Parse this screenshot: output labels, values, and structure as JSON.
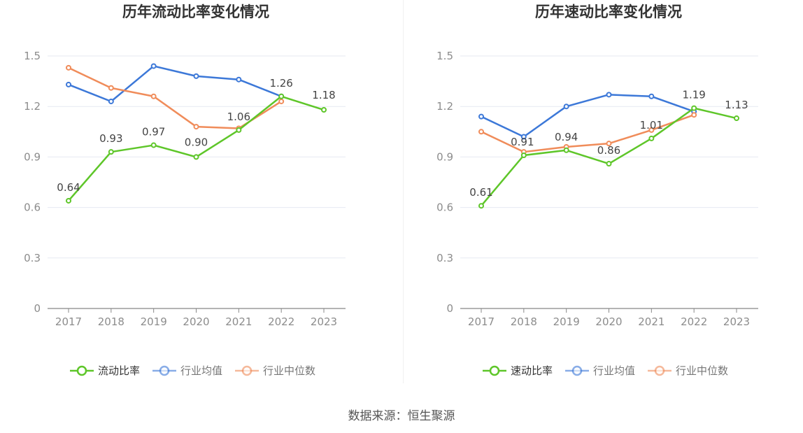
{
  "source_label": "数据来源：恒生聚源",
  "colors": {
    "company": "#5ec629",
    "industry_avg": "#3c78d8",
    "industry_median": "#f08c5a",
    "grid": "#e6e9f2",
    "axis": "#888888",
    "tick_text": "#8c8c8c",
    "title": "#333333",
    "label": "#444444"
  },
  "chart_data": [
    {
      "type": "line",
      "title": "历年流动比率变化情况",
      "x": [
        "2017",
        "2018",
        "2019",
        "2020",
        "2021",
        "2022",
        "2023"
      ],
      "ylim": [
        0,
        1.5
      ],
      "yticks": [
        "0",
        "0.3",
        "0.6",
        "0.9",
        "1.2",
        "1.5"
      ],
      "grid": true,
      "legend_position": "bottom",
      "series": [
        {
          "name": "流动比率",
          "color_key": "company",
          "values": [
            0.64,
            0.93,
            0.97,
            0.9,
            1.06,
            1.26,
            1.18
          ],
          "labels": [
            "0.64",
            "0.93",
            "0.97",
            "0.90",
            "1.06",
            "1.26",
            "1.18"
          ]
        },
        {
          "name": "行业均值",
          "color_key": "industry_avg",
          "values": [
            1.33,
            1.23,
            1.44,
            1.38,
            1.36,
            1.26,
            null
          ]
        },
        {
          "name": "行业中位数",
          "color_key": "industry_median",
          "values": [
            1.43,
            1.31,
            1.26,
            1.08,
            1.07,
            1.23,
            null
          ]
        }
      ]
    },
    {
      "type": "line",
      "title": "历年速动比率变化情况",
      "x": [
        "2017",
        "2018",
        "2019",
        "2020",
        "2021",
        "2022",
        "2023"
      ],
      "ylim": [
        0,
        1.5
      ],
      "yticks": [
        "0",
        "0.3",
        "0.6",
        "0.9",
        "1.2",
        "1.5"
      ],
      "grid": true,
      "legend_position": "bottom",
      "series": [
        {
          "name": "速动比率",
          "color_key": "company",
          "values": [
            0.61,
            0.91,
            0.94,
            0.86,
            1.01,
            1.19,
            1.13
          ],
          "labels": [
            "0.61",
            "0.91",
            "0.94",
            "0.86",
            "1.01",
            "1.19",
            "1.13"
          ]
        },
        {
          "name": "行业均值",
          "color_key": "industry_avg",
          "values": [
            1.14,
            1.02,
            1.2,
            1.27,
            1.26,
            1.17,
            null
          ]
        },
        {
          "name": "行业中位数",
          "color_key": "industry_median",
          "values": [
            1.05,
            0.93,
            0.96,
            0.98,
            1.06,
            1.15,
            null
          ]
        }
      ]
    }
  ]
}
